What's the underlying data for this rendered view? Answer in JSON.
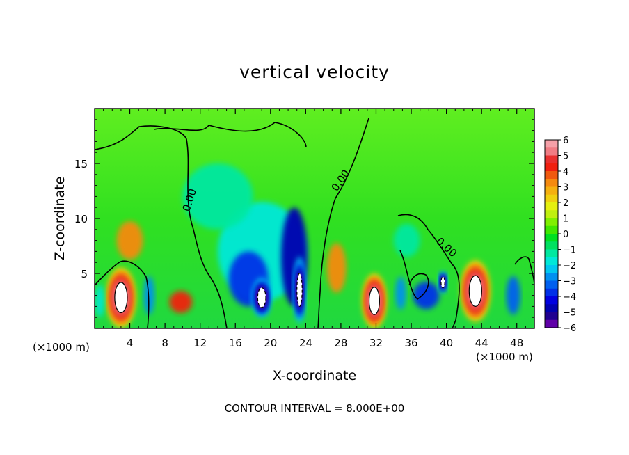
{
  "chart_data": {
    "type": "heatmap",
    "title": "vertical velocity",
    "xlabel": "X-coordinate",
    "ylabel": "Z-coordinate",
    "x_unit": "(×1000 m)",
    "z_unit": "(×1000 m)",
    "xlim": [
      0,
      50
    ],
    "ylim": [
      0,
      20
    ],
    "x_ticks": [
      4,
      8,
      12,
      16,
      20,
      24,
      28,
      32,
      36,
      40,
      44,
      48
    ],
    "x_tick_labels": [
      "4",
      "8",
      "12",
      "16",
      "20",
      "24",
      "28",
      "32",
      "36",
      "40",
      "44",
      "48"
    ],
    "y_ticks": [
      5,
      10,
      15
    ],
    "y_tick_labels": [
      "5",
      "10",
      "15"
    ],
    "contour_labels": [
      "0.00",
      "0.00",
      "0.00"
    ],
    "footer": "CONTOUR INTERVAL = 8.000E+00",
    "colorbar": {
      "min": -6,
      "max": 6,
      "tick_labels": [
        "6",
        "5",
        "4",
        "3",
        "2",
        "1",
        "0",
        "−1",
        "−2",
        "−3",
        "−4",
        "−5",
        "−6"
      ],
      "levels": [
        {
          "from": 5.5,
          "to": 6,
          "color": "#f5a0a8"
        },
        {
          "from": 5,
          "to": 5.5,
          "color": "#f07c84"
        },
        {
          "from": 4.5,
          "to": 5,
          "color": "#e83030"
        },
        {
          "from": 4,
          "to": 4.5,
          "color": "#f02010"
        },
        {
          "from": 3.5,
          "to": 4,
          "color": "#f05a10"
        },
        {
          "from": 3,
          "to": 3.5,
          "color": "#f58a10"
        },
        {
          "from": 2.5,
          "to": 3,
          "color": "#f5b010"
        },
        {
          "from": 2,
          "to": 2.5,
          "color": "#f0d010"
        },
        {
          "from": 1.5,
          "to": 2,
          "color": "#e6f010"
        },
        {
          "from": 1,
          "to": 1.5,
          "color": "#c0f010"
        },
        {
          "from": 0.5,
          "to": 1,
          "color": "#80f000"
        },
        {
          "from": 0,
          "to": 0.5,
          "color": "#40e800"
        },
        {
          "from": -0.5,
          "to": 0,
          "color": "#00e020"
        },
        {
          "from": -1,
          "to": -0.5,
          "color": "#00e060"
        },
        {
          "from": -1.5,
          "to": -1,
          "color": "#00e8a0"
        },
        {
          "from": -2,
          "to": -1.5,
          "color": "#00e8d8"
        },
        {
          "from": -2.5,
          "to": -2,
          "color": "#00c8f0"
        },
        {
          "from": -3,
          "to": -2.5,
          "color": "#0090f0"
        },
        {
          "from": -3.5,
          "to": -3,
          "color": "#0060f0"
        },
        {
          "from": -4,
          "to": -3.5,
          "color": "#0030e8"
        },
        {
          "from": -4.5,
          "to": -4,
          "color": "#0000e0"
        },
        {
          "from": -5,
          "to": -4.5,
          "color": "#0000b0"
        },
        {
          "from": -5.5,
          "to": -5,
          "color": "#200090"
        },
        {
          "from": -6,
          "to": -5.5,
          "color": "#6000a8"
        }
      ]
    },
    "features": [
      {
        "x": 3.0,
        "z": 2.8,
        "w": 3.4,
        "h": 5.5,
        "value": 6
      },
      {
        "x": 4.0,
        "z": 8.0,
        "w": 3.0,
        "h": 3.5,
        "value": 3
      },
      {
        "x": 6.2,
        "z": 3.0,
        "w": 1.2,
        "h": 3.5,
        "value": -3
      },
      {
        "x": 9.8,
        "z": 2.4,
        "w": 2.6,
        "h": 2.0,
        "value": 4
      },
      {
        "x": 0.6,
        "z": 2.5,
        "w": 1.0,
        "h": 3.0,
        "value": -2
      },
      {
        "x": 19.0,
        "z": 7.0,
        "w": 10.0,
        "h": 9.0,
        "value": -2
      },
      {
        "x": 17.5,
        "z": 4.5,
        "w": 4.5,
        "h": 5.0,
        "value": -4
      },
      {
        "x": 19.0,
        "z": 2.8,
        "w": 2.2,
        "h": 3.6,
        "value": -6
      },
      {
        "x": 22.7,
        "z": 6.5,
        "w": 3.0,
        "h": 9.0,
        "value": -5
      },
      {
        "x": 23.3,
        "z": 3.5,
        "w": 1.4,
        "h": 6.0,
        "value": -6
      },
      {
        "x": 27.5,
        "z": 5.5,
        "w": 2.2,
        "h": 4.5,
        "value": 3
      },
      {
        "x": 31.8,
        "z": 2.5,
        "w": 2.8,
        "h": 5.0,
        "value": 6
      },
      {
        "x": 34.8,
        "z": 3.2,
        "w": 1.2,
        "h": 3.0,
        "value": -3
      },
      {
        "x": 37.7,
        "z": 3.0,
        "w": 3.0,
        "h": 2.5,
        "value": -4
      },
      {
        "x": 39.6,
        "z": 4.2,
        "w": 1.0,
        "h": 2.0,
        "value": -6
      },
      {
        "x": 43.3,
        "z": 3.4,
        "w": 3.4,
        "h": 5.6,
        "value": 6
      },
      {
        "x": 47.6,
        "z": 3.0,
        "w": 1.6,
        "h": 3.5,
        "value": -3.5
      },
      {
        "x": 35.5,
        "z": 8.0,
        "w": 3.0,
        "h": 3.0,
        "value": -1.5
      },
      {
        "x": 14.0,
        "z": 12.0,
        "w": 8.0,
        "h": 6.0,
        "value": -1.2
      }
    ]
  }
}
